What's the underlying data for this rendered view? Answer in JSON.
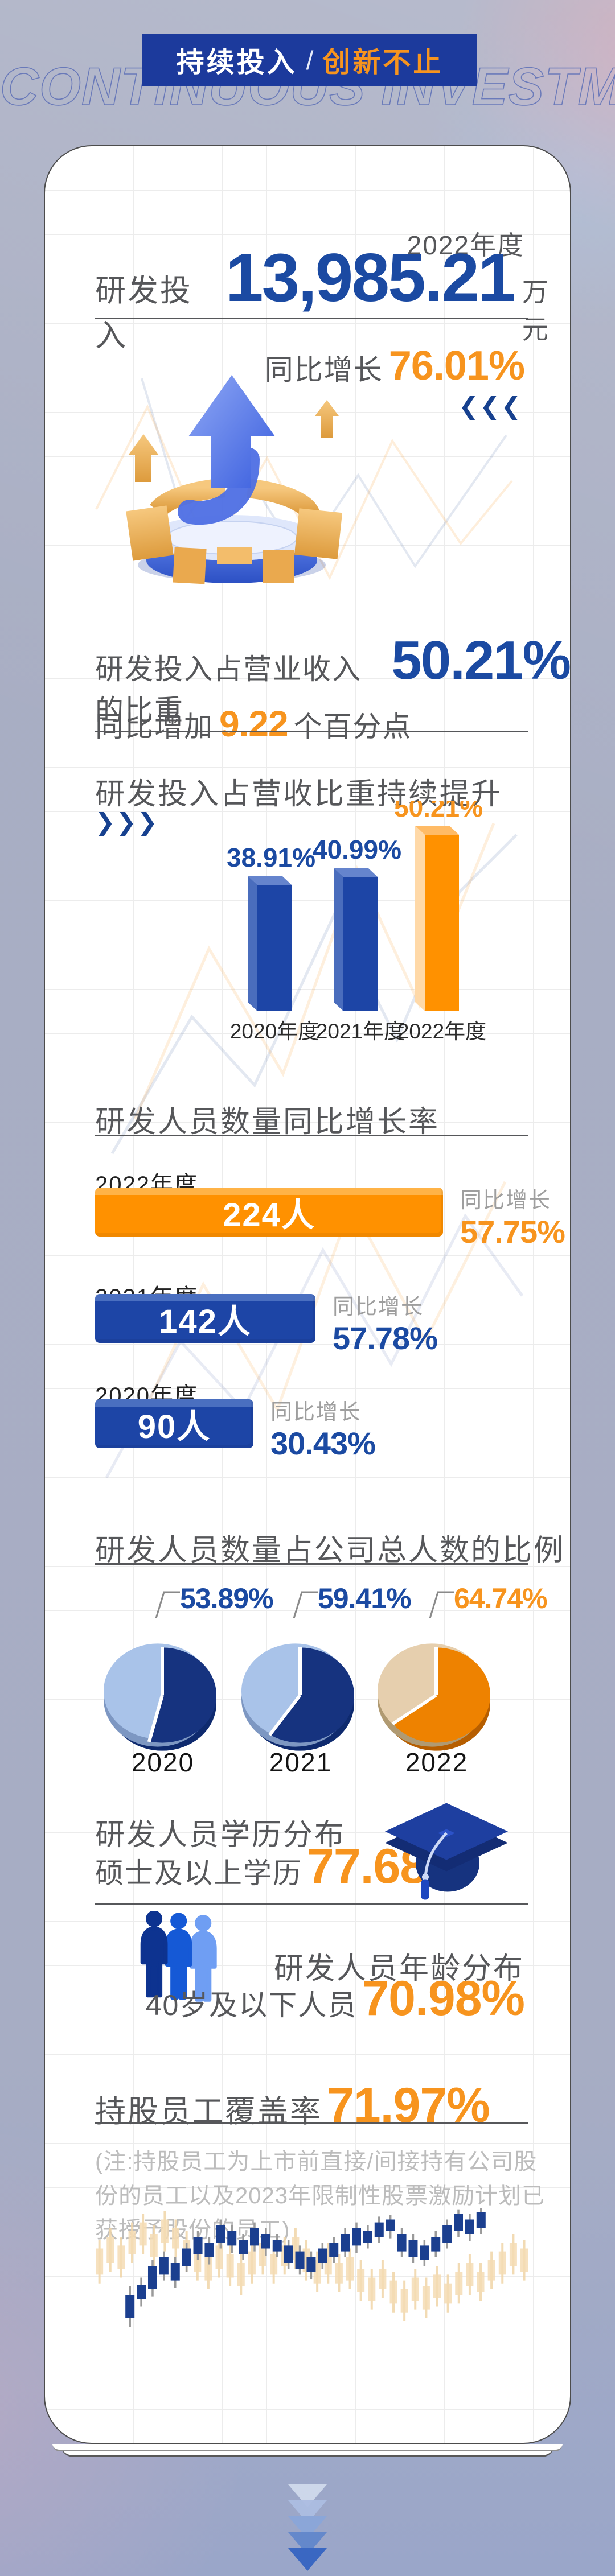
{
  "banner": {
    "title_left": "持续投入",
    "divider": "/",
    "title_right": "创新不止"
  },
  "watermark": "CONTINUOUS INVESTMENT",
  "hero": {
    "year": "2022年度",
    "label": "研发投入",
    "value": "13,985.21",
    "unit": "万元",
    "growth_prefix": "同比增长",
    "growth_value": "76.01%",
    "chevrons": "❮❮❮"
  },
  "ratio": {
    "prefix": "研发投入占营业收入的比重",
    "value": "50.21%",
    "line2_prefix": "同比增加",
    "line2_value": "9.22",
    "line2_suffix": "个百分点"
  },
  "trend": {
    "title": "研发投入占营收比重持续提升",
    "chevrons": "❯❯❯"
  },
  "headcount": {
    "title": "研发人员数量同比增长率"
  },
  "pies": {
    "title": "研发人员数量占公司总人数的比例"
  },
  "education": {
    "title": "研发人员学历分布",
    "prefix": "硕士及以上学历",
    "value": "77.68%"
  },
  "age": {
    "title": "研发人员年龄分布",
    "prefix": "40岁及以下人员",
    "value": "70.98%"
  },
  "ownership": {
    "prefix": "持股员工覆盖率",
    "value": "71.97%",
    "note": "(注:持股员工为上市前直接/间接持有公司股份的员工以及2023年限制性股票激励计划已获授予股份的员工)"
  },
  "colors": {
    "banner_blue": "#1c3a9c",
    "primary_blue": "#1b4aa2",
    "bar_blue": "#1d45a6",
    "bar_orange": "#ff9100",
    "accent_orange": "#f7941e",
    "navy": "#16337f",
    "light_blue": "#a9c3e9",
    "tan": "#e6cfae",
    "heading_gray": "#56575a",
    "note_gray": "#bcbcbc"
  },
  "chart_data": [
    {
      "type": "bar",
      "title": "研发投入占营收比重持续提升",
      "categories": [
        "2020年度",
        "2021年度",
        "2022年度"
      ],
      "values": [
        38.91,
        40.99,
        50.21
      ],
      "data_labels": [
        "38.91%",
        "40.99%",
        "50.21%"
      ],
      "label_colors": [
        "#1b4aa2",
        "#1b4aa2",
        "#f7941e"
      ],
      "colors": [
        "#1d45a6",
        "#1d45a6",
        "#ff9100"
      ],
      "unit": "%",
      "ylim": [
        0,
        55
      ],
      "grid": true,
      "legend": false
    },
    {
      "type": "bar",
      "orientation": "horizontal",
      "title": "研发人员数量同比增长率",
      "categories": [
        "2022年度",
        "2021年度",
        "2020年度"
      ],
      "values": [
        224,
        142,
        90
      ],
      "value_labels": [
        "224人",
        "142人",
        "90人"
      ],
      "growth_prefix": "同比增长",
      "growth_labels": [
        "57.75%",
        "57.78%",
        "30.43%"
      ],
      "colors": [
        "#ff9100",
        "#1d45a6",
        "#1d45a6"
      ],
      "growth_colors": [
        "#f7941e",
        "#1b4aa2",
        "#1b4aa2"
      ]
    },
    {
      "type": "pie",
      "title": "研发人员数量占公司总人数的比例",
      "categories": [
        "2020",
        "2021",
        "2022"
      ],
      "values": [
        53.89,
        59.41,
        64.74
      ],
      "data_labels": [
        "53.89%",
        "59.41%",
        "64.74%"
      ],
      "slice_colors": [
        "#16337f",
        "#16337f",
        "#ee8200"
      ],
      "rest_colors": [
        "#a9c3e9",
        "#a9c3e9",
        "#e6cfae"
      ],
      "depth_colors": [
        "#0e2a6e",
        "#0e2a6e",
        "#b65e00"
      ],
      "rest_depth_colors": [
        "#7d97c2",
        "#7d97c2",
        "#b09a72"
      ],
      "label_colors": [
        "#1b4aa2",
        "#1b4aa2",
        "#f7941e"
      ]
    },
    {
      "type": "candlestick",
      "decorative": true,
      "foreground": {
        "color": "#1b3f8f",
        "wick_color": "#9a9a9a",
        "candles": [
          [
            8,
            62,
            78,
            56,
            84
          ],
          [
            10.6,
            55,
            65,
            50,
            70
          ],
          [
            13.2,
            42,
            58,
            38,
            63
          ],
          [
            15.8,
            36,
            48,
            32,
            52
          ],
          [
            18.4,
            40,
            52,
            36,
            57
          ],
          [
            21,
            30,
            42,
            26,
            46
          ],
          [
            23.6,
            22,
            34,
            18,
            38
          ],
          [
            26.2,
            26,
            36,
            22,
            41
          ],
          [
            28.8,
            14,
            26,
            10,
            30
          ],
          [
            31.4,
            18,
            28,
            14,
            33
          ],
          [
            34,
            24,
            34,
            20,
            38
          ],
          [
            36.6,
            16,
            28,
            12,
            32
          ],
          [
            39.2,
            20,
            30,
            16,
            35
          ],
          [
            41.8,
            24,
            32,
            20,
            36
          ],
          [
            44.4,
            28,
            40,
            24,
            44
          ],
          [
            47,
            32,
            44,
            28,
            48
          ],
          [
            49.6,
            36,
            46,
            32,
            51
          ],
          [
            52.2,
            30,
            40,
            26,
            44
          ],
          [
            54.8,
            26,
            36,
            22,
            40
          ],
          [
            57.4,
            20,
            32,
            16,
            36
          ],
          [
            60,
            16,
            28,
            12,
            33
          ],
          [
            62.6,
            18,
            26,
            14,
            30
          ],
          [
            65.2,
            12,
            22,
            8,
            26
          ],
          [
            67.8,
            10,
            18,
            7,
            23
          ],
          [
            70.4,
            20,
            32,
            16,
            36
          ],
          [
            73,
            24,
            36,
            20,
            40
          ],
          [
            75.6,
            28,
            38,
            24,
            42
          ],
          [
            78.2,
            22,
            32,
            18,
            36
          ],
          [
            80.8,
            14,
            26,
            10,
            30
          ],
          [
            83.4,
            6,
            18,
            3,
            22
          ],
          [
            86,
            10,
            20,
            6,
            25
          ],
          [
            88.6,
            5,
            16,
            2,
            20
          ]
        ]
      },
      "background": {
        "color": "#f5dcb4",
        "wick_color": "#f0d5a8",
        "candles": [
          [
            1,
            30,
            48,
            24,
            54
          ],
          [
            3.5,
            22,
            40,
            16,
            46
          ],
          [
            6,
            28,
            44,
            22,
            50
          ],
          [
            8.5,
            18,
            34,
            12,
            40
          ],
          [
            11,
            12,
            28,
            6,
            34
          ],
          [
            13.5,
            20,
            36,
            14,
            42
          ],
          [
            16,
            10,
            26,
            4,
            32
          ],
          [
            18.5,
            16,
            30,
            10,
            36
          ],
          [
            21,
            24,
            40,
            18,
            46
          ],
          [
            23.5,
            30,
            46,
            24,
            52
          ],
          [
            26,
            36,
            52,
            30,
            58
          ],
          [
            28.5,
            28,
            44,
            22,
            50
          ],
          [
            31,
            34,
            50,
            28,
            56
          ],
          [
            33.5,
            40,
            56,
            34,
            62
          ],
          [
            36,
            32,
            48,
            26,
            54
          ],
          [
            38.5,
            26,
            42,
            20,
            48
          ],
          [
            41,
            34,
            48,
            28,
            54
          ],
          [
            43.5,
            28,
            42,
            22,
            48
          ],
          [
            46,
            22,
            38,
            16,
            44
          ],
          [
            48.5,
            30,
            46,
            24,
            52
          ],
          [
            51,
            38,
            54,
            32,
            60
          ],
          [
            53.5,
            32,
            48,
            26,
            54
          ],
          [
            56,
            40,
            54,
            34,
            60
          ],
          [
            58.5,
            36,
            52,
            30,
            58
          ],
          [
            61,
            44,
            60,
            38,
            66
          ],
          [
            63.5,
            50,
            66,
            44,
            72
          ],
          [
            66,
            44,
            58,
            38,
            64
          ],
          [
            68.5,
            52,
            68,
            46,
            74
          ],
          [
            71,
            58,
            74,
            52,
            80
          ],
          [
            73.5,
            50,
            66,
            44,
            72
          ],
          [
            76,
            56,
            72,
            50,
            78
          ],
          [
            78.5,
            48,
            64,
            42,
            70
          ],
          [
            81,
            54,
            68,
            48,
            74
          ],
          [
            83.5,
            46,
            62,
            40,
            68
          ],
          [
            86,
            40,
            56,
            34,
            62
          ],
          [
            88.5,
            46,
            60,
            40,
            66
          ],
          [
            91,
            38,
            52,
            32,
            58
          ],
          [
            93.5,
            32,
            48,
            26,
            54
          ],
          [
            96,
            26,
            42,
            20,
            48
          ],
          [
            98.5,
            30,
            46,
            24,
            52
          ]
        ]
      }
    }
  ]
}
